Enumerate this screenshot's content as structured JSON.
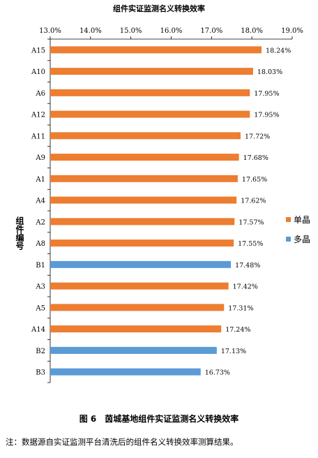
{
  "colors": {
    "single": "#ED7D31",
    "poly": "#5B9BD5"
  },
  "chart_data": {
    "type": "bar",
    "orientation": "horizontal",
    "title": "组件实证监测名义转换效率",
    "ylabel": "组件编号",
    "xlim": [
      13.0,
      19.0
    ],
    "xticks": [
      "13.0%",
      "14.0%",
      "15.0%",
      "16.0%",
      "17.0%",
      "18.0%",
      "19.0%"
    ],
    "x_axis_position": "top",
    "legend": {
      "placement": "right",
      "entries": [
        "单晶",
        "多晶"
      ]
    },
    "grid": false,
    "categories": [
      "A15",
      "A10",
      "A6",
      "A12",
      "A11",
      "A9",
      "A1",
      "A4",
      "A2",
      "A8",
      "B1",
      "A3",
      "A5",
      "A14",
      "B2",
      "B3"
    ],
    "values": [
      18.24,
      18.03,
      17.95,
      17.95,
      17.72,
      17.68,
      17.65,
      17.62,
      17.57,
      17.55,
      17.48,
      17.42,
      17.31,
      17.24,
      17.13,
      16.73
    ],
    "value_labels": [
      "18.24%",
      "18.03%",
      "17.95%",
      "17.95%",
      "17.72%",
      "17.68%",
      "17.65%",
      "17.62%",
      "17.57%",
      "17.55%",
      "17.48%",
      "17.42%",
      "17.31%",
      "17.24%",
      "17.13%",
      "16.73%"
    ],
    "bar_type": [
      "单晶",
      "单晶",
      "单晶",
      "单晶",
      "单晶",
      "单晶",
      "单晶",
      "单晶",
      "单晶",
      "单晶",
      "多晶",
      "单晶",
      "单晶",
      "单晶",
      "多晶",
      "多晶"
    ]
  },
  "caption": "图 6　茵城基地组件实证监测名义转换效率",
  "note": "注：数据源自实证监测平台清洗后的组件名义转换效率测算结果。"
}
